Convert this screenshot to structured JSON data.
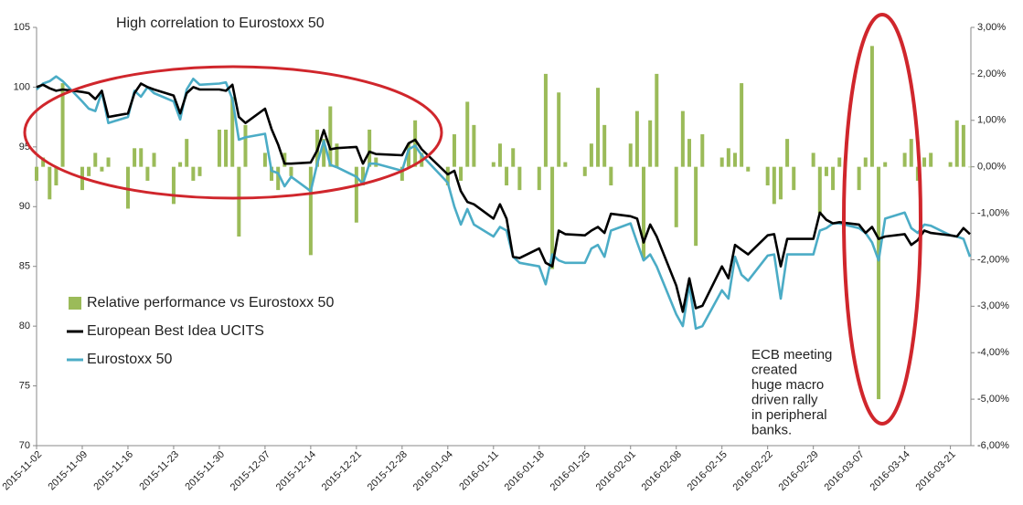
{
  "chart_data": {
    "type": "combo",
    "annotations": [
      {
        "lines": [
          "High correlation to Eurostoxx 50"
        ]
      },
      {
        "lines": [
          "ECB meeting",
          "created",
          "huge macro",
          "driven rally",
          "in peripheral",
          "banks."
        ]
      }
    ],
    "x": [
      "2015-11-02",
      "2015-11-03",
      "2015-11-04",
      "2015-11-05",
      "2015-11-06",
      "2015-11-09",
      "2015-11-10",
      "2015-11-11",
      "2015-11-12",
      "2015-11-13",
      "2015-11-16",
      "2015-11-17",
      "2015-11-18",
      "2015-11-19",
      "2015-11-20",
      "2015-11-23",
      "2015-11-24",
      "2015-11-25",
      "2015-11-26",
      "2015-11-27",
      "2015-11-30",
      "2015-12-01",
      "2015-12-02",
      "2015-12-03",
      "2015-12-04",
      "2015-12-07",
      "2015-12-08",
      "2015-12-09",
      "2015-12-10",
      "2015-12-11",
      "2015-12-14",
      "2015-12-15",
      "2015-12-16",
      "2015-12-17",
      "2015-12-18",
      "2015-12-21",
      "2015-12-22",
      "2015-12-23",
      "2015-12-24",
      "2015-12-28",
      "2015-12-29",
      "2015-12-30",
      "2015-12-31",
      "2016-01-04",
      "2016-01-05",
      "2016-01-06",
      "2016-01-07",
      "2016-01-08",
      "2016-01-11",
      "2016-01-12",
      "2016-01-13",
      "2016-01-14",
      "2016-01-15",
      "2016-01-18",
      "2016-01-19",
      "2016-01-20",
      "2016-01-21",
      "2016-01-22",
      "2016-01-25",
      "2016-01-26",
      "2016-01-27",
      "2016-01-28",
      "2016-01-29",
      "2016-02-01",
      "2016-02-02",
      "2016-02-03",
      "2016-02-04",
      "2016-02-05",
      "2016-02-08",
      "2016-02-09",
      "2016-02-10",
      "2016-02-11",
      "2016-02-12",
      "2016-02-15",
      "2016-02-16",
      "2016-02-17",
      "2016-02-18",
      "2016-02-19",
      "2016-02-22",
      "2016-02-23",
      "2016-02-24",
      "2016-02-25",
      "2016-02-26",
      "2016-02-29",
      "2016-03-01",
      "2016-03-02",
      "2016-03-03",
      "2016-03-04",
      "2016-03-07",
      "2016-03-08",
      "2016-03-09",
      "2016-03-10",
      "2016-03-11",
      "2016-03-14",
      "2016-03-15",
      "2016-03-16",
      "2016-03-17",
      "2016-03-18",
      "2016-03-21",
      "2016-03-22",
      "2016-03-23",
      "2016-03-24"
    ],
    "series": [
      {
        "name": "Relative performance vs Eurostoxx 50",
        "type": "bar",
        "axis": "y2",
        "color": "#9bbb59",
        "values": [
          -0.3,
          0.2,
          -0.7,
          -0.4,
          1.8,
          -0.5,
          -0.2,
          0.3,
          -0.1,
          0.2,
          -0.9,
          0.4,
          0.4,
          -0.3,
          0.3,
          -0.8,
          0.1,
          0.6,
          -0.3,
          -0.2,
          0.8,
          0.8,
          1.5,
          -1.5,
          0.9,
          0.3,
          -0.3,
          -0.5,
          0.3,
          -0.2,
          -1.9,
          0.8,
          0.6,
          1.3,
          0.5,
          -1.2,
          -0.4,
          0.8,
          0.2,
          -0.3,
          0.5,
          1.0,
          0.3,
          -0.4,
          0.7,
          -0.3,
          1.4,
          0.9,
          0.1,
          0.5,
          -0.4,
          0.4,
          -0.5,
          -0.5,
          2.0,
          -2.2,
          1.6,
          0.1,
          -0.2,
          0.5,
          1.7,
          0.9,
          -0.4,
          0.5,
          1.2,
          -2.0,
          1.0,
          2.0,
          -1.3,
          1.2,
          0.6,
          -1.7,
          0.7,
          0.2,
          0.4,
          0.3,
          1.8,
          -0.1,
          -0.4,
          -0.8,
          -0.7,
          0.6,
          -0.5,
          0.3,
          -1.0,
          -0.2,
          -0.5,
          0.2,
          -0.5,
          0.2,
          2.6,
          -5.0,
          0.1,
          0.3,
          0.6,
          -0.3,
          0.2,
          0.3,
          0.1,
          1.0,
          0.9,
          0.0
        ]
      },
      {
        "name": "European Best Idea UCITS",
        "type": "line",
        "color": "#000000",
        "values": [
          100,
          100.2,
          99.9,
          99.7,
          99.8,
          99.6,
          99.5,
          99,
          99.7,
          97.5,
          97.8,
          99.5,
          100.3,
          100,
          99.8,
          99.3,
          97.8,
          99.5,
          100,
          99.8,
          99.8,
          99.7,
          100.2,
          97.5,
          97,
          98.2,
          96.5,
          95.2,
          93.6,
          93.6,
          93.7,
          94.7,
          96.4,
          94.8,
          94.9,
          95,
          93.6,
          94.6,
          94.4,
          94.3,
          95.3,
          95.6,
          94.8,
          92.7,
          93,
          91.3,
          90.4,
          90.2,
          89,
          90.2,
          89,
          85.8,
          85.7,
          86.5,
          85.3,
          85,
          88,
          87.7,
          87.6,
          88,
          88.3,
          87.8,
          89.4,
          89.2,
          89,
          87,
          88.5,
          87.5,
          83.4,
          81.2,
          84,
          81.5,
          81.7,
          85,
          84,
          86.8,
          86.4,
          86,
          87.6,
          87.7,
          85,
          87.3,
          87.3,
          87.3,
          89.5,
          88.9,
          88.6,
          88.7,
          88.5,
          87.8,
          88.3,
          87.3,
          87.5,
          87.7,
          86.8,
          87.2,
          88,
          87.8,
          87.6,
          87.5,
          88.2,
          87.7
        ]
      },
      {
        "name": "Eurostoxx 50",
        "type": "line",
        "color": "#4bacc6",
        "values": [
          99.8,
          100.3,
          100.5,
          100.9,
          100.5,
          98.8,
          98.2,
          98,
          99.6,
          97,
          97.5,
          99.7,
          99.2,
          100,
          99.5,
          98.8,
          97.3,
          99.8,
          100.7,
          100.2,
          100.3,
          100.4,
          99,
          95.6,
          95.8,
          96.1,
          93,
          92.8,
          91.7,
          92.5,
          91.3,
          93.6,
          95.5,
          93.5,
          93.3,
          92.5,
          91.9,
          93.6,
          93.6,
          93,
          94.8,
          95.1,
          94.3,
          92,
          90,
          88.5,
          89.8,
          88.5,
          87.5,
          88.3,
          88,
          85.8,
          85.3,
          85,
          83.5,
          86,
          85.5,
          85.3,
          85.3,
          86.5,
          86.8,
          85.8,
          88,
          88.6,
          87,
          85.5,
          86,
          85,
          81,
          80,
          83.5,
          79.8,
          80,
          83,
          82.3,
          85.8,
          84.3,
          83.8,
          85.9,
          86,
          82.3,
          86,
          86,
          86,
          88,
          88.2,
          88.6,
          88.6,
          88.2,
          87.8,
          87,
          85.5,
          89,
          89.5,
          88.2,
          87.8,
          88.5,
          88.4,
          87.6,
          87.5,
          87.3,
          85.8
        ]
      }
    ],
    "ylim": [
      70,
      105
    ],
    "yticks": [
      70,
      75,
      80,
      85,
      90,
      95,
      100,
      105
    ],
    "y2lim": [
      -6,
      3
    ],
    "y2ticks": [
      {
        "value": -6,
        "label": "-6,00%"
      },
      {
        "value": -5,
        "label": "-5,00%"
      },
      {
        "value": -4,
        "label": "-4,00%"
      },
      {
        "value": -3,
        "label": "-3,00%"
      },
      {
        "value": -2,
        "label": "-2,00%"
      },
      {
        "value": -1,
        "label": "-1,00%"
      },
      {
        "value": 0,
        "label": "0,00%"
      },
      {
        "value": 1,
        "label": "1,00%"
      },
      {
        "value": 2,
        "label": "2,00%"
      },
      {
        "value": 3,
        "label": "3,00%"
      }
    ],
    "xticks": [
      "2015-11-02",
      "2015-11-09",
      "2015-11-16",
      "2015-11-23",
      "2015-11-30",
      "2015-12-07",
      "2015-12-14",
      "2015-12-21",
      "2015-12-28",
      "2016-01-04",
      "2016-01-11",
      "2016-01-18",
      "2016-01-25",
      "2016-02-01",
      "2016-02-08",
      "2016-02-15",
      "2016-02-22",
      "2016-02-29",
      "2016-03-07",
      "2016-03-14",
      "2016-03-21"
    ],
    "legend": "left"
  }
}
